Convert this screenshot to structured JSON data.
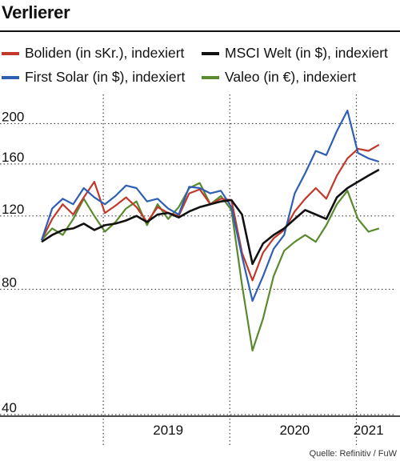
{
  "title": "Verlierer",
  "legend": [
    {
      "label": "Boliden (in sKr.), indexiert",
      "color": "#c0392b"
    },
    {
      "label": "MSCI Welt (in $), indexiert",
      "color": "#111111"
    },
    {
      "label": "First Solar (in $), indexiert",
      "color": "#2f5fb3"
    },
    {
      "label": "Valeo (in €), indexiert",
      "color": "#5a8a2e"
    }
  ],
  "source": "Quelle: Refinitiv / FuW",
  "chart_data": {
    "type": "line",
    "y_scale": "log",
    "ylim": [
      40,
      235
    ],
    "yticks": [
      200,
      160,
      120,
      80,
      40
    ],
    "xlim": [
      "2018-07",
      "2021-04"
    ],
    "x_tick_labels": [
      "2019",
      "2020",
      "2021"
    ],
    "grid": "dotted",
    "series": [
      {
        "name": "Boliden (in sKr.), indexiert",
        "color": "#c0392b",
        "x": [
          "2018-07",
          "2018-08",
          "2018-09",
          "2018-10",
          "2018-11",
          "2018-12",
          "2019-01",
          "2019-02",
          "2019-03",
          "2019-04",
          "2019-05",
          "2019-06",
          "2019-07",
          "2019-08",
          "2019-09",
          "2019-10",
          "2019-11",
          "2019-12",
          "2020-01",
          "2020-02",
          "2020-03",
          "2020-04",
          "2020-05",
          "2020-06",
          "2020-07",
          "2020-08",
          "2020-09",
          "2020-10",
          "2020-11",
          "2020-12",
          "2021-01",
          "2021-02",
          "2021-03"
        ],
        "values": [
          105,
          118,
          128,
          121,
          133,
          145,
          122,
          127,
          133,
          126,
          116,
          126,
          122,
          120,
          136,
          139,
          128,
          132,
          131,
          98,
          84,
          98,
          106,
          111,
          123,
          132,
          140,
          132,
          150,
          165,
          174,
          172,
          178
        ]
      },
      {
        "name": "MSCI Welt (in $), indexiert",
        "color": "#111111",
        "x": [
          "2018-07",
          "2018-08",
          "2018-09",
          "2018-10",
          "2018-11",
          "2018-12",
          "2019-01",
          "2019-02",
          "2019-03",
          "2019-04",
          "2019-05",
          "2019-06",
          "2019-07",
          "2019-08",
          "2019-09",
          "2019-10",
          "2019-11",
          "2019-12",
          "2020-01",
          "2020-02",
          "2020-03",
          "2020-04",
          "2020-05",
          "2020-06",
          "2020-07",
          "2020-08",
          "2020-09",
          "2020-10",
          "2020-11",
          "2020-12",
          "2021-01",
          "2021-02",
          "2021-03"
        ],
        "values": [
          104,
          108,
          111,
          112,
          115,
          111,
          114,
          115,
          117,
          120,
          116,
          121,
          122,
          119,
          123,
          126,
          128,
          130,
          131,
          121,
          92,
          103,
          108,
          112,
          118,
          124,
          121,
          118,
          133,
          140,
          145,
          150,
          155
        ]
      },
      {
        "name": "First Solar (in $), indexiert",
        "color": "#2f5fb3",
        "x": [
          "2018-07",
          "2018-08",
          "2018-09",
          "2018-10",
          "2018-11",
          "2018-12",
          "2019-01",
          "2019-02",
          "2019-03",
          "2019-04",
          "2019-05",
          "2019-06",
          "2019-07",
          "2019-08",
          "2019-09",
          "2019-10",
          "2019-11",
          "2019-12",
          "2020-01",
          "2020-02",
          "2020-03",
          "2020-04",
          "2020-05",
          "2020-06",
          "2020-07",
          "2020-08",
          "2020-09",
          "2020-10",
          "2020-11",
          "2020-12",
          "2021-01",
          "2021-02",
          "2021-03"
        ],
        "values": [
          105,
          125,
          132,
          128,
          140,
          133,
          128,
          134,
          142,
          140,
          130,
          132,
          125,
          121,
          141,
          140,
          136,
          138,
          126,
          96,
          75,
          86,
          100,
          108,
          136,
          152,
          172,
          168,
          192,
          215,
          170,
          165,
          162
        ]
      },
      {
        "name": "Valeo (in €), indexiert",
        "color": "#5a8a2e",
        "x": [
          "2018-07",
          "2018-08",
          "2018-09",
          "2018-10",
          "2018-11",
          "2018-12",
          "2019-01",
          "2019-02",
          "2019-03",
          "2019-04",
          "2019-05",
          "2019-06",
          "2019-07",
          "2019-08",
          "2019-09",
          "2019-10",
          "2019-11",
          "2019-12",
          "2020-01",
          "2020-02",
          "2020-03",
          "2020-04",
          "2020-05",
          "2020-06",
          "2020-07",
          "2020-08",
          "2020-09",
          "2020-10",
          "2020-11",
          "2020-12",
          "2021-01",
          "2021-02",
          "2021-03"
        ],
        "values": [
          105,
          112,
          108,
          118,
          132,
          120,
          110,
          116,
          125,
          130,
          114,
          128,
          118,
          126,
          140,
          144,
          128,
          134,
          124,
          82,
          57,
          68,
          86,
          99,
          104,
          108,
          104,
          114,
          128,
          138,
          118,
          110,
          112
        ]
      }
    ]
  }
}
